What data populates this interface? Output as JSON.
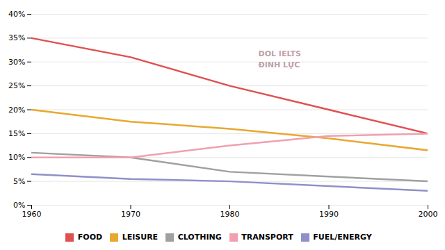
{
  "chart_data": {
    "type": "line",
    "x": [
      1960,
      1970,
      1980,
      1990,
      2000
    ],
    "series": [
      {
        "name": "FOOD",
        "color": "#e05050",
        "values": [
          35,
          31,
          25,
          20,
          15
        ]
      },
      {
        "name": "LEISURE",
        "color": "#e8a830",
        "values": [
          20,
          17.5,
          16,
          14,
          11.5
        ]
      },
      {
        "name": "CLOTHING",
        "color": "#a0a0a0",
        "values": [
          11,
          10,
          7,
          6,
          5
        ]
      },
      {
        "name": "TRANSPORT",
        "color": "#f0a0b0",
        "values": [
          10,
          10,
          12.5,
          14.5,
          15
        ]
      },
      {
        "name": "FUEL/ENERGY",
        "color": "#9090c8",
        "values": [
          6.5,
          5.5,
          5,
          4,
          3
        ]
      }
    ],
    "xlim": [
      1960,
      2000
    ],
    "xticks": [
      1960,
      1970,
      1980,
      1990,
      2000
    ],
    "ylim": [
      0,
      40
    ],
    "yticks": [
      {
        "value": 0,
        "label": "0%"
      },
      {
        "value": 5,
        "label": "5%"
      },
      {
        "value": 10,
        "label": "10%"
      },
      {
        "value": 15,
        "label": "15%"
      },
      {
        "value": 20,
        "label": "20%"
      },
      {
        "value": 25,
        "label": "25%"
      },
      {
        "value": 30,
        "label": "30%"
      },
      {
        "value": 35,
        "label": "35%"
      },
      {
        "value": 40,
        "label": "40%"
      }
    ],
    "grid": true,
    "legend": "bottom",
    "annotations": [
      "DOL IELTS\nĐINH LỰC"
    ]
  }
}
